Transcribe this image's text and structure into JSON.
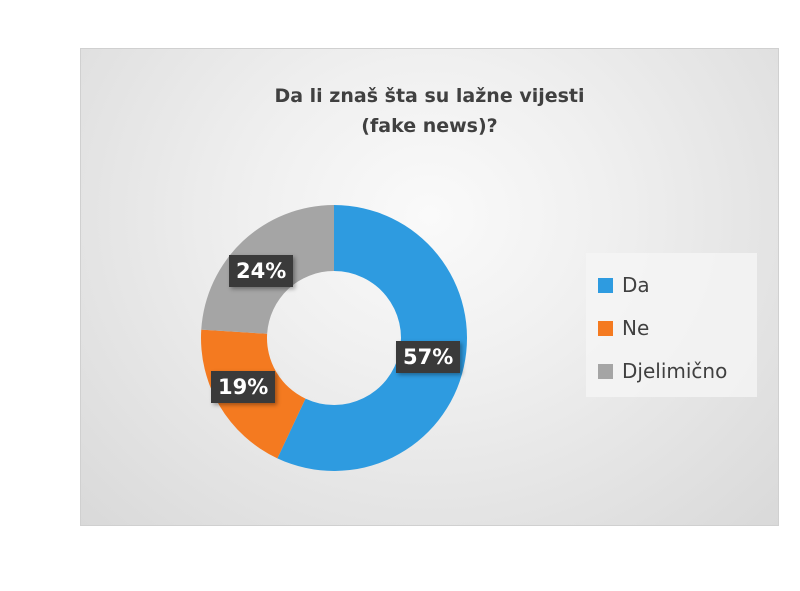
{
  "chart_data": {
    "type": "pie",
    "donut": true,
    "title": "Da li znaš šta su lažne vijesti (fake news)?",
    "title_lines": [
      "Da li znaš šta su lažne vijesti",
      "(fake news)?"
    ],
    "categories": [
      "Da",
      "Ne",
      "Djelimično"
    ],
    "values": [
      57,
      19,
      24
    ],
    "data_labels": [
      "57%",
      "19%",
      "24%"
    ],
    "colors": [
      "#2e9be0",
      "#f47a20",
      "#a5a5a5"
    ],
    "legend_position": "right"
  }
}
